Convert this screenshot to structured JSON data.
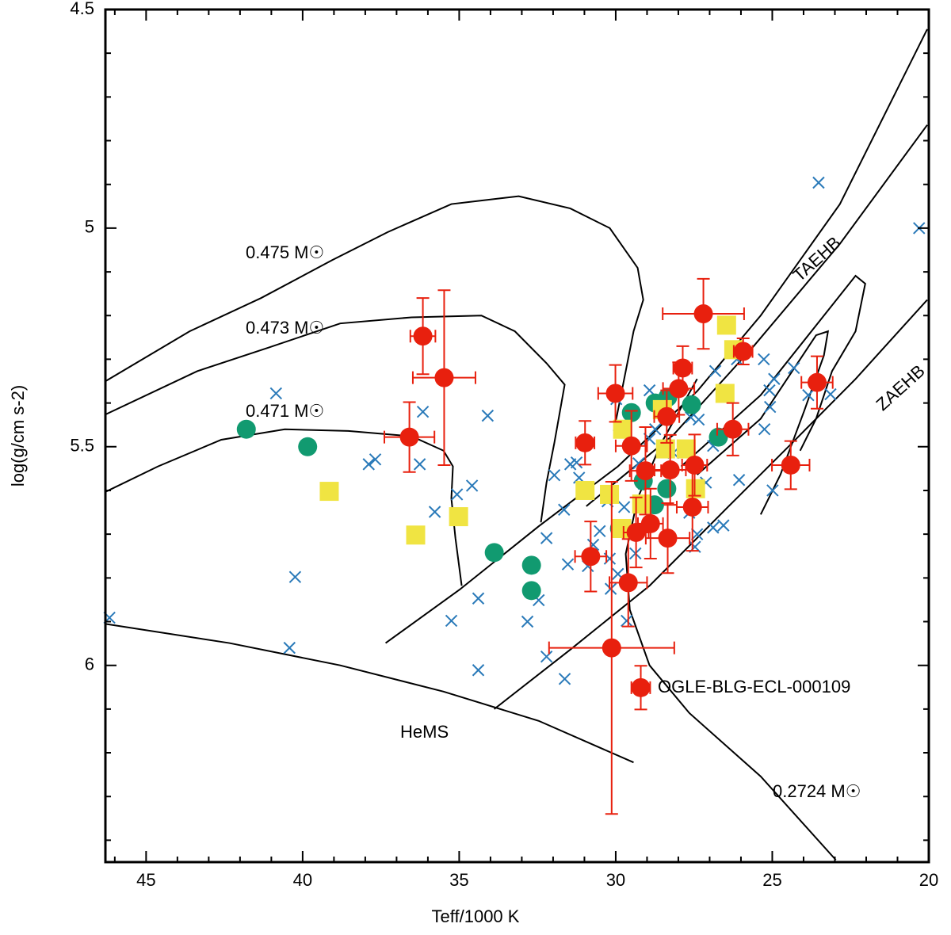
{
  "chart_data": {
    "type": "scatter",
    "xlabel": "Teff/1000 K",
    "ylabel": "log(g/cm s-2)",
    "xlim": [
      46.3,
      20
    ],
    "ylim": [
      4.5,
      6.45
    ],
    "xticks": [
      45,
      40,
      35,
      30,
      25,
      20
    ],
    "yticks": [
      4.5,
      5,
      5.5,
      6
    ],
    "xminorticks": [
      46,
      44,
      43,
      42,
      41,
      39,
      38,
      37,
      36,
      34,
      33,
      32,
      31,
      29,
      28,
      27,
      26,
      24,
      23,
      22,
      21
    ],
    "yminorticks": [
      4.6,
      4.7,
      4.8,
      4.9,
      5.1,
      5.2,
      5.3,
      5.4,
      5.6,
      5.7,
      5.8,
      5.9,
      6.1,
      6.2,
      6.3,
      6.4
    ],
    "annotations": [
      "0.475 M☉",
      "0.473 M☉",
      "0.471 M☉",
      "HeMS",
      "TAEHB",
      "ZAEHB",
      "OGLE-BLG-ECL-000109",
      "0.2724 M☉"
    ],
    "lines": [
      {
        "color": "#000000",
        "x": [
          46.32,
          43.61,
          41.33,
          39.05,
          37.28,
          35.25,
          33.1,
          31.45,
          30.19,
          29.3,
          29.12,
          29.43,
          29.68,
          30.06
        ],
        "y": [
          5.351,
          5.236,
          5.16,
          5.073,
          5.009,
          4.945,
          4.927,
          4.955,
          5.0,
          5.091,
          5.164,
          5.236,
          5.327,
          5.464
        ]
      },
      {
        "color": "#000000",
        "x": [
          46.32,
          43.36,
          41.08,
          38.8,
          36.52,
          34.29,
          33.22,
          32.21,
          31.63,
          31.96,
          32.21,
          32.39
        ],
        "y": [
          5.427,
          5.327,
          5.273,
          5.218,
          5.204,
          5.2,
          5.236,
          5.309,
          5.358,
          5.491,
          5.582,
          5.673
        ]
      },
      {
        "color": "#000000",
        "x": [
          46.32,
          44.62,
          42.6,
          40.57,
          38.54,
          36.52,
          35.5,
          35.2,
          35.25,
          35.12,
          34.92
        ],
        "y": [
          5.604,
          5.545,
          5.484,
          5.46,
          5.464,
          5.476,
          5.509,
          5.545,
          5.618,
          5.709,
          5.818
        ]
      },
      {
        "color": "#000000",
        "x": [
          46.32,
          42.34,
          38.8,
          35.5,
          32.46,
          29.43
        ],
        "y": [
          5.905,
          5.949,
          6.0,
          6.06,
          6.127,
          6.222
        ]
      },
      {
        "color": "#000000",
        "x": [
          37.35,
          34.99,
          32.46,
          29.93,
          27.4,
          25.37,
          22.84,
          20.05
        ],
        "y": [
          5.949,
          5.827,
          5.682,
          5.545,
          5.373,
          5.2,
          4.945,
          4.545
        ]
      },
      {
        "color": "#000000",
        "x": [
          30.94,
          28.16,
          25.63,
          22.84,
          20.05
        ],
        "y": [
          5.636,
          5.473,
          5.273,
          5.036,
          4.764
        ]
      },
      {
        "color": "#000000",
        "x": [
          27.91,
          25.37,
          23.35,
          22.34,
          22.03,
          22.34,
          23.09,
          23.6,
          24.11
        ],
        "y": [
          5.545,
          5.382,
          5.2,
          5.109,
          5.127,
          5.236,
          5.327,
          5.436,
          5.509
        ]
      },
      {
        "color": "#000000",
        "x": [
          27.4,
          25.37,
          23.6,
          23.22,
          23.35,
          23.98,
          24.74,
          25.37
        ],
        "y": [
          5.564,
          5.436,
          5.245,
          5.236,
          5.291,
          5.418,
          5.564,
          5.655
        ]
      },
      {
        "color": "#000000",
        "x": [
          33.88,
          31.45,
          28.92,
          26.39,
          24.36,
          22.34,
          20.05
        ],
        "y": [
          6.1,
          5.964,
          5.818,
          5.636,
          5.491,
          5.345,
          5.164
        ]
      },
      {
        "color": "#000000",
        "x": [
          22.97,
          25.37,
          27.65,
          28.92,
          29.55,
          29.68,
          29.3,
          28.54,
          27.4
        ],
        "y": [
          6.445,
          6.254,
          6.109,
          6.0,
          5.873,
          5.745,
          5.618,
          5.491,
          5.345
        ]
      }
    ],
    "series": [
      {
        "marker": "x",
        "color": "#2a7ab9",
        "x": [
          46.17,
          40.85,
          40.24,
          40.42,
          37.89,
          37.68,
          36.16,
          36.26,
          35.78,
          35.07,
          34.59,
          34.09,
          35.25,
          34.39,
          34.39,
          32.82,
          32.46,
          32.21,
          31.63,
          31.53,
          31.45,
          31.25,
          31.17,
          30.72,
          30.51,
          30.26,
          30.19,
          30.16,
          29.93,
          29.73,
          29.65,
          29.37,
          29.27,
          29.1,
          28.92,
          28.74,
          28.16,
          27.6,
          27.35,
          27.12,
          27.4,
          27.47,
          26.89,
          26.82,
          26.13,
          26.06,
          25.27,
          25.25,
          25.09,
          25.07,
          24.94,
          24.99,
          24.31,
          23.85,
          23.52,
          23.14,
          20.31,
          31.65,
          30.89,
          26.89,
          26.56,
          27.65,
          29.98,
          28.92,
          31.96,
          32.21
        ],
        "y": [
          5.891,
          5.378,
          5.798,
          5.96,
          5.54,
          5.529,
          5.42,
          5.54,
          5.649,
          5.609,
          5.589,
          5.429,
          5.898,
          5.847,
          6.011,
          5.9,
          5.851,
          5.98,
          6.031,
          5.769,
          5.54,
          5.536,
          5.571,
          5.724,
          5.693,
          5.625,
          5.756,
          5.825,
          5.791,
          5.638,
          5.898,
          5.744,
          5.538,
          5.585,
          5.371,
          5.46,
          5.514,
          5.433,
          5.438,
          5.582,
          5.7,
          5.729,
          5.498,
          5.327,
          5.3,
          5.576,
          5.3,
          5.46,
          5.371,
          5.409,
          5.345,
          5.6,
          5.32,
          5.382,
          4.896,
          5.38,
          5.0,
          5.644,
          5.773,
          5.685,
          5.68,
          5.651,
          5.391,
          5.482,
          5.565,
          5.709
        ]
      },
      {
        "marker": "circle",
        "color": "#119a70",
        "x": [
          41.8,
          39.84,
          33.88,
          32.69,
          32.69,
          29.5,
          28.74,
          28.34,
          27.58,
          26.72,
          29.12,
          28.37,
          29.88,
          28.76
        ],
        "y": [
          5.46,
          5.5,
          5.742,
          5.771,
          5.829,
          5.422,
          5.4,
          5.387,
          5.404,
          5.478,
          5.578,
          5.596,
          5.687,
          5.633
        ]
      },
      {
        "marker": "square",
        "color": "#f0e442",
        "x": [
          39.15,
          36.39,
          35.02,
          30.98,
          30.2,
          29.78,
          28.51,
          26.46,
          26.23,
          26.51,
          28.41,
          27.75,
          27.45,
          29.17,
          29.81
        ],
        "y": [
          5.602,
          5.702,
          5.66,
          5.6,
          5.609,
          5.46,
          5.415,
          5.222,
          5.278,
          5.378,
          5.505,
          5.505,
          5.596,
          5.631,
          5.687
        ]
      },
      {
        "marker": "circle",
        "color": "#e8200e",
        "x": [
          36.16,
          35.48,
          36.59,
          27.2,
          25.93,
          30.01,
          27.86,
          27.99,
          28.37,
          30.98,
          29.5,
          26.26,
          23.57,
          24.41,
          29.05,
          28.26,
          27.48,
          27.55,
          29.35,
          28.89,
          28.34,
          30.8,
          29.6,
          30.13,
          29.2
        ],
        "y": [
          5.247,
          5.342,
          5.478,
          5.196,
          5.282,
          5.378,
          5.32,
          5.367,
          5.431,
          5.491,
          5.498,
          5.46,
          5.353,
          5.542,
          5.555,
          5.553,
          5.542,
          5.638,
          5.696,
          5.676,
          5.709,
          5.751,
          5.811,
          5.96,
          6.051
        ],
        "xerr": [
          0.4,
          1.0,
          0.8,
          1.3,
          0.3,
          0.55,
          0.3,
          0.5,
          0.4,
          0.3,
          0.5,
          0.5,
          0.5,
          0.6,
          0.5,
          0.5,
          0.4,
          0.5,
          0.4,
          0.4,
          0.7,
          0.5,
          0.6,
          2.0,
          0.3
        ],
        "yerr": [
          0.087,
          0.2,
          0.08,
          0.08,
          0.03,
          0.065,
          0.05,
          0.06,
          0.06,
          0.05,
          0.08,
          0.06,
          0.06,
          0.055,
          0.1,
          0.08,
          0.07,
          0.1,
          0.08,
          0.08,
          0.08,
          0.08,
          0.1,
          0.38,
          0.05
        ]
      }
    ]
  }
}
